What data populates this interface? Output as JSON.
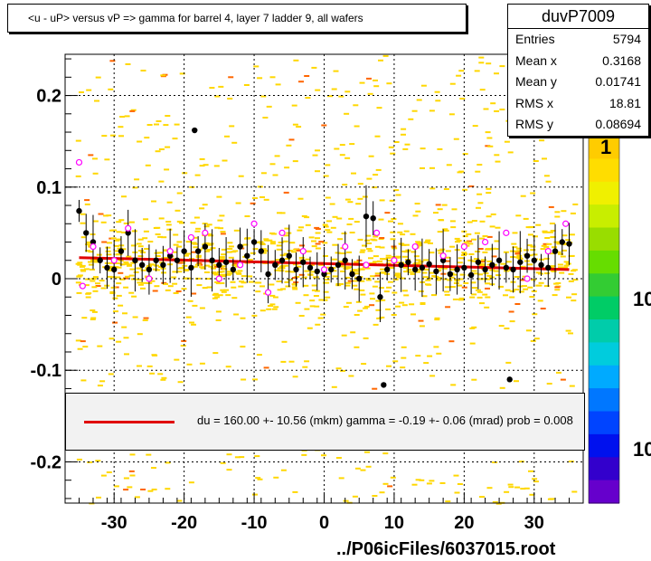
{
  "title": "<u - uP>       versus   vP =>  gamma for barrel 4, layer 7 ladder 9, all wafers",
  "stats": {
    "name": "duvP7009",
    "rows": [
      {
        "label": "Entries",
        "value": "5794"
      },
      {
        "label": "Mean x",
        "value": "0.3168"
      },
      {
        "label": "Mean y",
        "value": "0.01741"
      },
      {
        "label": "RMS x",
        "value": "18.81"
      },
      {
        "label": "RMS y",
        "value": "0.08694"
      }
    ]
  },
  "fit_text": "du =  160.00 +- 10.56 (mkm) gamma =   -0.19 +-  0.06 (mrad) prob = 0.008",
  "footer": "../P06icFiles/6037015.root",
  "palette_labels": [
    "1",
    "10",
    "10"
  ],
  "colors": {
    "fit": "#e00000",
    "points": "#000000",
    "open_markers": "#ff00ff",
    "hist_main": "#ffd700",
    "hist_hot": "#ff6600"
  },
  "chart_data": {
    "type": "scatter",
    "xlim": [
      -37,
      37
    ],
    "ylim": [
      -0.245,
      0.245
    ],
    "x_ticks": [
      -30,
      -20,
      -10,
      0,
      10,
      20,
      30
    ],
    "y_ticks": [
      -0.2,
      -0.1,
      0,
      0.1,
      0.2
    ],
    "x_tick_labels": [
      "-30",
      "-20",
      "-10",
      "0",
      "10",
      "20",
      "30"
    ],
    "y_tick_labels": [
      "-0.2",
      "-0.1",
      "0",
      "0.1",
      "0.2"
    ],
    "grid": true,
    "fit_line": {
      "x": [
        -35,
        35
      ],
      "y": [
        0.023,
        0.01
      ]
    },
    "profile_points": {
      "x": [
        -35,
        -34,
        -33,
        -32,
        -31,
        -30,
        -29,
        -28,
        -27,
        -26,
        -25,
        -24,
        -23,
        -22,
        -21,
        -20,
        -19,
        -18,
        -17,
        -16,
        -15,
        -14,
        -13,
        -12,
        -11,
        -10,
        -9,
        -8,
        -7,
        -6,
        -5,
        -4,
        -3,
        -2,
        -1,
        0,
        1,
        2,
        3,
        4,
        5,
        6,
        7,
        8,
        9,
        10,
        11,
        12,
        13,
        14,
        15,
        16,
        17,
        18,
        19,
        20,
        21,
        22,
        23,
        24,
        25,
        26,
        27,
        28,
        29,
        30,
        31,
        32,
        33,
        34,
        35
      ],
      "y": [
        0.074,
        0.05,
        0.04,
        0.02,
        0.012,
        0.01,
        0.03,
        0.05,
        0.02,
        0.015,
        0.01,
        0.02,
        0.015,
        0.025,
        0.02,
        0.03,
        0.012,
        0.03,
        0.035,
        0.02,
        0.015,
        0.018,
        0.01,
        0.035,
        0.025,
        0.04,
        0.03,
        0.005,
        0.015,
        0.02,
        0.025,
        0.01,
        0.018,
        0.012,
        0.008,
        0.005,
        0.01,
        0.015,
        0.02,
        0.005,
        0.0,
        0.068,
        0.066,
        -0.02,
        0.01,
        0.02,
        0.015,
        0.018,
        0.01,
        0.012,
        0.016,
        0.008,
        0.02,
        0.005,
        0.01,
        0.012,
        0.004,
        0.018,
        0.01,
        0.015,
        0.02,
        0.012,
        0.01,
        0.018,
        0.025,
        0.02,
        0.015,
        0.012,
        0.03,
        0.04,
        0.038
      ]
    },
    "open_points": {
      "x": [
        -35,
        -34.5,
        -33,
        -30,
        -28,
        -25,
        -22,
        -19,
        -17,
        -15,
        -12,
        -10,
        -8,
        -6,
        -3,
        0,
        3,
        6,
        7.5,
        10,
        13,
        17,
        20,
        23,
        26,
        29,
        32,
        34.5
      ],
      "y": [
        0.127,
        -0.008,
        0.035,
        0.02,
        0.055,
        0.0,
        0.03,
        0.045,
        0.05,
        0.0,
        0.015,
        0.06,
        -0.015,
        0.05,
        0.03,
        0.01,
        0.035,
        0.015,
        0.05,
        0.02,
        0.035,
        0.025,
        0.035,
        0.04,
        0.05,
        0.0,
        0.03,
        0.06
      ]
    },
    "outliers": {
      "x": [
        -18.5,
        8.5,
        26.5
      ],
      "y": [
        0.162,
        -0.116,
        -0.11
      ]
    }
  }
}
